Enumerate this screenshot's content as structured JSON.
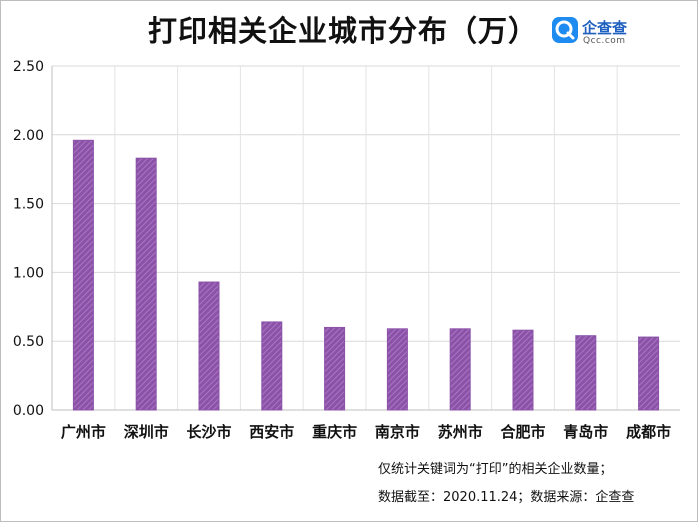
{
  "logo": {
    "name": "企查查",
    "sub": "Qcc.com",
    "color": "#1e8bf0"
  },
  "notes": {
    "line1": "仅统计关键词为“打印”的相关企业数量；",
    "line2": "数据截至：2020.11.24；数据来源：企查查"
  },
  "chart_data": {
    "type": "bar",
    "title": "打印相关企业城市分布（万）",
    "xlabel": "",
    "ylabel": "",
    "categories": [
      "广州市",
      "深圳市",
      "长沙市",
      "西安市",
      "重庆市",
      "南京市",
      "苏州市",
      "合肥市",
      "青岛市",
      "成都市"
    ],
    "values": [
      1.96,
      1.83,
      0.93,
      0.64,
      0.6,
      0.59,
      0.59,
      0.58,
      0.54,
      0.53
    ],
    "ylim": [
      0,
      2.5
    ],
    "yticks": [
      "0.00",
      "0.50",
      "1.00",
      "1.50",
      "2.00",
      "2.50"
    ],
    "grid": true,
    "bar_color": "#8b52a8",
    "bar_stripe_color": "#b07fcb"
  }
}
